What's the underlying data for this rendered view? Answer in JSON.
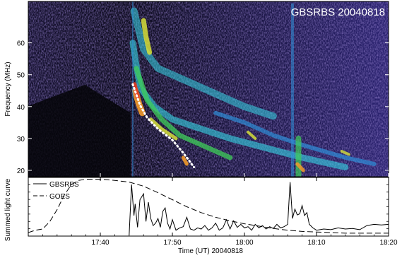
{
  "chart_data": [
    {
      "type": "heatmap",
      "title": "GBSRBS 20040818",
      "ylabel": "Frequency (MHz)",
      "xlim": [
        "17:30",
        "18:20"
      ],
      "ylim": [
        18,
        73
      ],
      "yticks": [
        "20",
        "30",
        "40",
        "50",
        "60"
      ],
      "ytick_values": [
        20,
        30,
        40,
        50,
        60
      ],
      "colormap": [
        "#000000",
        "#1a0f3d",
        "#3a2a8c",
        "#4b3db8",
        "#2f8fd9",
        "#37d6e6",
        "#3fcf5a",
        "#d6e03a",
        "#f29a2a",
        "#e33b22"
      ],
      "background": "#0a0a10",
      "fit_line": {
        "style": "dotted",
        "color": "#ffffff",
        "points": [
          [
            "17:44:30",
            47
          ],
          [
            "17:45:30",
            40.5
          ],
          [
            "17:46:30",
            36.5
          ],
          [
            "17:48:00",
            33
          ],
          [
            "17:50:00",
            29.5
          ],
          [
            "17:51:30",
            25.5
          ],
          [
            "17:53:00",
            21
          ]
        ]
      }
    },
    {
      "type": "line",
      "ylabel": "Summed light curve",
      "xlabel": "Time (UT) 20040818",
      "xlim": [
        "17:30",
        "18:20"
      ],
      "xticks": [
        "17:40",
        "17:50",
        "18:00",
        "18:10",
        "18:20"
      ],
      "xtick_values": [
        "17:40",
        "17:50",
        "18:00",
        "18:10",
        "18:20"
      ],
      "ylim": [
        0,
        1
      ],
      "legend_placement": "top-left",
      "series": [
        {
          "name": "GBSRBS",
          "style": "solid",
          "x": [
            "17:44:00",
            "17:44:20",
            "17:44:40",
            "17:44:50",
            "17:45:10",
            "17:45:30",
            "17:46:00",
            "17:46:20",
            "17:46:40",
            "17:47:00",
            "17:47:20",
            "17:47:40",
            "17:48:00",
            "17:48:20",
            "17:48:40",
            "17:49:00",
            "17:49:20",
            "17:49:40",
            "17:50:00",
            "17:50:30",
            "17:51:00",
            "17:51:30",
            "17:52:00",
            "17:52:30",
            "17:53:00",
            "17:53:30",
            "17:54:00",
            "17:54:30",
            "17:55:00",
            "17:55:30",
            "17:56:00",
            "17:56:30",
            "17:57:00",
            "17:57:30",
            "17:58:00",
            "17:58:30",
            "17:59:00",
            "17:59:30",
            "18:00:00",
            "18:00:30",
            "18:01:00",
            "18:01:30",
            "18:02:00",
            "18:02:30",
            "18:03:00",
            "18:03:30",
            "18:04:00",
            "18:04:30",
            "18:05:00",
            "18:05:30",
            "18:06:00",
            "18:06:20",
            "18:06:40",
            "18:07:00",
            "18:07:20",
            "18:07:40",
            "18:08:00",
            "18:08:20",
            "18:08:40",
            "18:09:00",
            "18:09:30",
            "18:10:00",
            "18:11:00",
            "18:12:00",
            "18:13:00",
            "18:14:00",
            "18:15:00",
            "18:16:00",
            "18:17:00",
            "18:18:00",
            "18:19:00",
            "18:20:00"
          ],
          "y": [
            0.02,
            0.88,
            0.35,
            0.55,
            0.15,
            0.62,
            0.72,
            0.25,
            0.58,
            0.3,
            0.18,
            0.22,
            0.3,
            0.15,
            0.42,
            0.48,
            0.22,
            0.12,
            0.28,
            0.1,
            0.14,
            0.16,
            0.32,
            0.12,
            0.1,
            0.14,
            0.12,
            0.18,
            0.1,
            0.14,
            0.22,
            0.1,
            0.14,
            0.28,
            0.12,
            0.26,
            0.15,
            0.2,
            0.14,
            0.16,
            0.1,
            0.2,
            0.14,
            0.18,
            0.12,
            0.16,
            0.13,
            0.2,
            0.14,
            0.16,
            0.2,
            0.92,
            0.3,
            0.46,
            0.36,
            0.38,
            0.52,
            0.35,
            0.4,
            0.2,
            0.14,
            0.1,
            0.12,
            0.11,
            0.14,
            0.12,
            0.13,
            0.11,
            0.18,
            0.2,
            0.19,
            0.2
          ]
        },
        {
          "name": "GOES",
          "style": "dashed",
          "x": [
            "17:30:00",
            "17:31:00",
            "17:32:00",
            "17:33:00",
            "17:34:00",
            "17:35:00",
            "17:36:00",
            "17:37:00",
            "17:38:00",
            "17:40:00",
            "17:42:00",
            "17:44:00",
            "17:46:00",
            "17:48:00",
            "17:50:00",
            "17:52:00",
            "17:54:00",
            "17:56:00",
            "17:58:00",
            "18:00:00",
            "18:02:00",
            "18:04:00",
            "18:06:00",
            "18:08:00",
            "18:10:00",
            "18:12:00",
            "18:14:00",
            "18:16:00",
            "18:18:00",
            "18:20:00"
          ],
          "y": [
            0.06,
            0.1,
            0.12,
            0.25,
            0.45,
            0.7,
            0.88,
            0.95,
            0.97,
            0.97,
            0.95,
            0.92,
            0.85,
            0.74,
            0.62,
            0.5,
            0.4,
            0.32,
            0.26,
            0.21,
            0.17,
            0.13,
            0.1,
            0.08,
            0.07,
            0.06,
            0.05,
            0.05,
            0.05,
            0.05
          ]
        }
      ]
    }
  ]
}
